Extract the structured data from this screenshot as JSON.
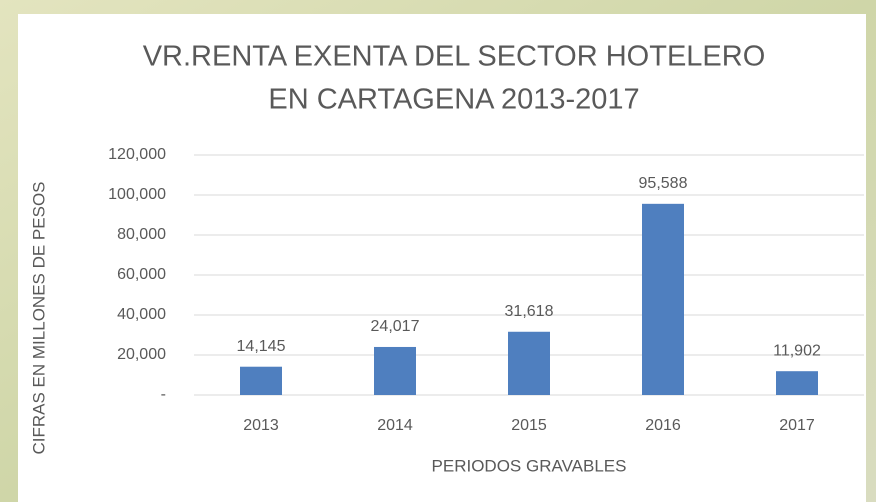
{
  "chart_data": {
    "type": "bar",
    "title": [
      "VR.RENTA EXENTA DEL SECTOR HOTELERO",
      "EN CARTAGENA  2013-2017"
    ],
    "x_label": "PERIODOS GRAVABLES",
    "y_label": "CIFRAS EN MILLONES DE PESOS",
    "categories": [
      "2013",
      "2014",
      "2015",
      "2016",
      "2017"
    ],
    "values": [
      14145,
      24017,
      31618,
      95588,
      11902
    ],
    "value_labels": [
      "14,145",
      "24,017",
      "31,618",
      "95,588",
      "11,902"
    ],
    "color": "#4f7fbf",
    "ylim": [
      0,
      120000
    ],
    "yticks": [
      {
        "value": 0,
        "label": "-"
      },
      {
        "value": 20000,
        "label": "20,000"
      },
      {
        "value": 40000,
        "label": "40,000"
      },
      {
        "value": 60000,
        "label": "60,000"
      },
      {
        "value": 80000,
        "label": "80,000"
      },
      {
        "value": 100000,
        "label": "100,000"
      },
      {
        "value": 120000,
        "label": "120,000"
      }
    ],
    "grid": true
  }
}
